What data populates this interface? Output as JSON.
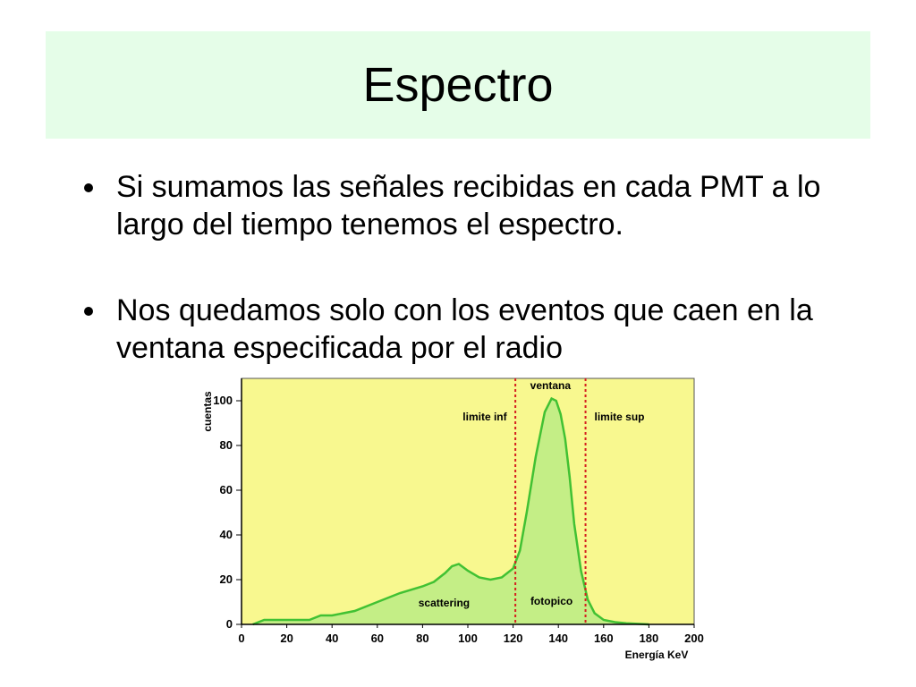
{
  "slide": {
    "title": "Espectro",
    "bullets": [
      "Si sumamos las señales recibidas en cada PMT a lo largo del tiempo tenemos el espectro.",
      "Nos quedamos solo con los eventos que caen en la ventana especificada por el radio"
    ]
  },
  "colors": {
    "title_band": "#e5fde8",
    "plot_background": "#f8f88f",
    "curve": "#41c133",
    "fill": "#c4ee86",
    "window_lines": "#d42020"
  },
  "chart_data": {
    "type": "area",
    "ylabel": "cuentas",
    "xlabel": "Energía KeV",
    "xlim": [
      0,
      200
    ],
    "ylim": [
      0,
      110
    ],
    "x_ticks": [
      "0",
      "20",
      "40",
      "60",
      "80",
      "100",
      "120",
      "140",
      "160",
      "180",
      "200"
    ],
    "y_ticks": [
      "0",
      "20",
      "40",
      "60",
      "80",
      "100"
    ],
    "x": [
      5,
      10,
      20,
      30,
      35,
      40,
      50,
      60,
      70,
      80,
      85,
      90,
      93,
      96,
      100,
      105,
      110,
      115,
      120,
      123,
      126,
      130,
      134,
      137,
      139,
      141,
      143,
      145,
      147,
      150,
      153,
      156,
      160,
      165,
      170,
      180
    ],
    "y": [
      0,
      2,
      2,
      2,
      4,
      4,
      6,
      10,
      14,
      17,
      19,
      23,
      26,
      27,
      24,
      21,
      20,
      21,
      25,
      33,
      50,
      75,
      95,
      101,
      100,
      94,
      83,
      66,
      45,
      24,
      11,
      5,
      2,
      1,
      0.5,
      0
    ],
    "window": {
      "lower": 121,
      "upper": 152
    },
    "annotations": [
      "ventana",
      "limite inf",
      "limite sup",
      "scattering",
      "fotopico"
    ]
  }
}
